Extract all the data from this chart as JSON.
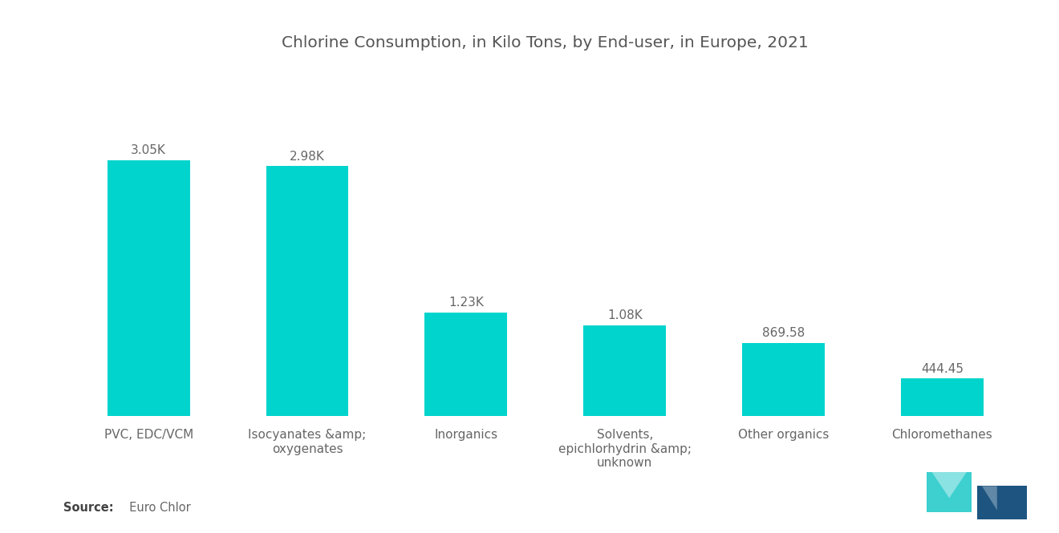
{
  "title": "Chlorine Consumption, in Kilo Tons, by End-user, in Europe, 2021",
  "categories": [
    "PVC, EDC/VCM",
    "Isocyanates &amp;\noxygenates",
    "Inorganics",
    "Solvents,\nepichlorhydrin &amp;\nunknown",
    "Other organics",
    "Chloromethanes"
  ],
  "values": [
    3050,
    2980,
    1230,
    1080,
    869.58,
    444.45
  ],
  "value_labels": [
    "3.05K",
    "2.98K",
    "1.23K",
    "1.08K",
    "869.58",
    "444.45"
  ],
  "bar_color": "#00D4CC",
  "background_color": "#ffffff",
  "title_color": "#555555",
  "label_color": "#666666",
  "ylim": [
    0,
    4200
  ],
  "title_fontsize": 14.5,
  "label_fontsize": 11,
  "tick_fontsize": 11
}
